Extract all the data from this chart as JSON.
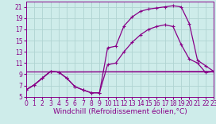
{
  "background_color": "#ceecea",
  "grid_color": "#afd4d2",
  "line_color": "#880088",
  "xlabel": "Windchill (Refroidissement éolien,°C)",
  "xlim": [
    0,
    23
  ],
  "ylim": [
    5,
    22
  ],
  "yticks": [
    5,
    7,
    9,
    11,
    13,
    15,
    17,
    19,
    21
  ],
  "xticks": [
    0,
    1,
    2,
    3,
    4,
    5,
    6,
    7,
    8,
    9,
    10,
    11,
    12,
    13,
    14,
    15,
    16,
    17,
    18,
    19,
    20,
    21,
    22,
    23
  ],
  "line1_x": [
    0,
    1,
    2,
    3,
    4,
    5,
    6,
    7,
    8,
    9,
    10,
    11,
    12,
    13,
    14,
    15,
    16,
    17,
    18,
    19,
    20,
    21,
    22,
    23
  ],
  "line1_y": [
    6.2,
    7.1,
    8.3,
    9.5,
    9.4,
    8.3,
    6.8,
    6.2,
    5.7,
    5.7,
    13.7,
    14.0,
    17.6,
    19.2,
    20.2,
    20.6,
    20.8,
    21.0,
    21.2,
    21.0,
    18.0,
    11.5,
    10.5,
    9.5
  ],
  "line2_x": [
    0,
    1,
    2,
    3,
    4,
    5,
    6,
    7,
    8,
    9,
    10,
    11,
    12,
    13,
    14,
    15,
    16,
    17,
    18,
    19,
    20,
    21,
    22,
    23
  ],
  "line2_y": [
    6.2,
    7.1,
    8.3,
    9.5,
    9.4,
    8.3,
    6.8,
    6.2,
    5.7,
    5.7,
    10.7,
    11.0,
    13.0,
    14.7,
    16.0,
    17.0,
    17.5,
    17.8,
    17.5,
    14.3,
    11.7,
    11.0,
    9.3,
    9.5
  ],
  "line3_x": [
    0,
    1,
    2,
    3,
    4,
    23
  ],
  "line3_y": [
    6.2,
    7.1,
    8.3,
    9.5,
    9.4,
    9.5
  ],
  "line4_x": [
    0,
    1,
    2,
    3,
    4,
    5,
    6,
    7,
    8,
    9,
    10,
    11,
    12,
    13,
    14,
    15,
    16,
    17,
    18,
    19,
    20,
    21,
    22,
    23
  ],
  "line4_y": [
    9.5,
    9.5,
    9.5,
    9.5,
    9.5,
    9.5,
    9.5,
    9.5,
    9.5,
    9.5,
    9.5,
    9.5,
    9.5,
    9.5,
    9.5,
    9.5,
    9.5,
    9.5,
    9.5,
    9.5,
    9.5,
    9.5,
    9.5,
    9.5
  ],
  "fontsize_label": 6.5,
  "fontsize_tick": 5.5,
  "marker": "+"
}
